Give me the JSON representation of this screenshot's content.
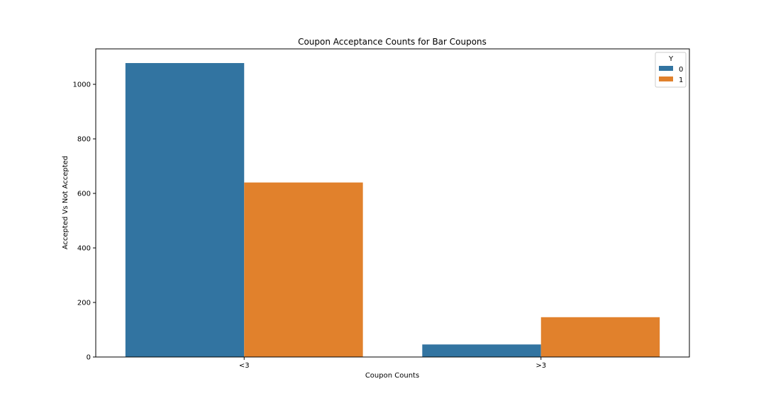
{
  "chart_data": {
    "type": "bar",
    "title": "Coupon Acceptance Counts for Bar Coupons",
    "xlabel": "Coupon Counts",
    "ylabel": "Accepted Vs Not Accepted",
    "categories": [
      "<3",
      ">3"
    ],
    "series": [
      {
        "name": "0",
        "values": [
          1078,
          46
        ]
      },
      {
        "name": "1",
        "values": [
          640,
          146
        ]
      }
    ],
    "ylim": [
      0,
      1130
    ],
    "yticks": [
      0,
      200,
      400,
      600,
      800,
      1000
    ],
    "grid": false,
    "legend": {
      "title": "Y",
      "placement": "top-right"
    },
    "colors": {
      "0": "#3274a1",
      "1": "#e1812c"
    }
  }
}
